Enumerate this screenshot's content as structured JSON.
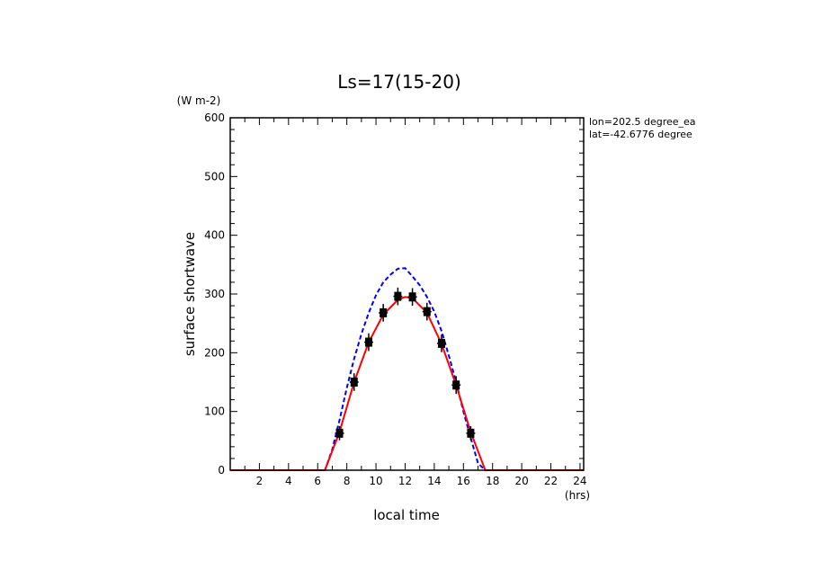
{
  "chart_data": {
    "type": "line",
    "title": "Ls=17(15-20)",
    "xlabel": "local time",
    "xunit": "(hrs)",
    "ylabel": "surface shortwave",
    "yunit": "(W m-2)",
    "annotations": [
      "lon=202.5 degree_ea",
      "lat=-42.6776 degree"
    ],
    "xlim": [
      0,
      24.25
    ],
    "ylim": [
      0,
      600
    ],
    "xticks": [
      2,
      4,
      6,
      8,
      10,
      12,
      14,
      16,
      18,
      20,
      22,
      24
    ],
    "yticks": [
      0,
      100,
      200,
      300,
      400,
      500,
      600
    ],
    "grid": false,
    "series": [
      {
        "style": "dashed",
        "color": "#0000ff",
        "x": [
          0,
          6.5,
          7.0,
          7.5,
          8.0,
          8.5,
          9.0,
          9.5,
          10.0,
          10.5,
          11.0,
          11.5,
          12.0,
          12.5,
          13.0,
          13.5,
          14.0,
          14.5,
          15.0,
          15.5,
          16.0,
          16.5,
          17.0,
          17.5,
          24.25
        ],
        "y": [
          0,
          0,
          35,
          85,
          140,
          190,
          232,
          268,
          298,
          320,
          333,
          343,
          344,
          330,
          315,
          295,
          270,
          237,
          195,
          150,
          100,
          55,
          12,
          0,
          0
        ]
      },
      {
        "style": "solid",
        "color": "#ff0000",
        "x": [
          0,
          6.5,
          7.5,
          8.5,
          9.5,
          10.5,
          11.5,
          12.0,
          12.5,
          13.5,
          14.5,
          15.5,
          16.5,
          17.5,
          24.25
        ],
        "y": [
          0,
          0,
          65,
          150,
          218,
          265,
          290,
          295,
          293,
          268,
          215,
          145,
          65,
          0,
          0
        ]
      },
      {
        "style": "markers",
        "color": "#000000",
        "x": [
          7.5,
          8.5,
          9.5,
          10.5,
          11.5,
          12.5,
          13.5,
          14.5,
          15.5,
          16.5
        ],
        "y": [
          63,
          150,
          218,
          268,
          296,
          295,
          270,
          216,
          145,
          63
        ],
        "err": [
          12,
          15,
          15,
          15,
          15,
          15,
          15,
          15,
          15,
          12
        ]
      }
    ]
  }
}
